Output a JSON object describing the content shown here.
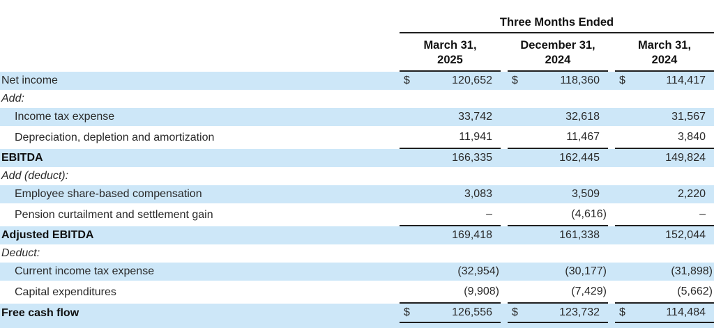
{
  "header": {
    "group_title": "Three Months Ended",
    "columns": [
      {
        "line1": "March 31,",
        "line2": "2025"
      },
      {
        "line1": "December 31,",
        "line2": "2024"
      },
      {
        "line1": "March 31,",
        "line2": "2024"
      }
    ]
  },
  "table": {
    "currency_symbol": "$",
    "rows": [
      {
        "label": "Net income",
        "values": [
          "120,652",
          "118,360",
          "114,417"
        ]
      },
      {
        "label": "Add:",
        "values": [
          "",
          "",
          ""
        ]
      },
      {
        "label": "Income tax expense",
        "values": [
          "33,742",
          "32,618",
          "31,567"
        ]
      },
      {
        "label": "Depreciation, depletion and amortization",
        "values": [
          "11,941",
          "11,467",
          "3,840"
        ]
      },
      {
        "label": "EBITDA",
        "values": [
          "166,335",
          "162,445",
          "149,824"
        ]
      },
      {
        "label": "Add (deduct):",
        "values": [
          "",
          "",
          ""
        ]
      },
      {
        "label": "Employee share-based compensation",
        "values": [
          "3,083",
          "3,509",
          "2,220"
        ]
      },
      {
        "label": "Pension curtailment and settlement gain",
        "values": [
          "–",
          "(4,616)",
          "–"
        ]
      },
      {
        "label": "Adjusted EBITDA",
        "values": [
          "169,418",
          "161,338",
          "152,044"
        ]
      },
      {
        "label": "Deduct:",
        "values": [
          "",
          "",
          ""
        ]
      },
      {
        "label": "Current income tax expense",
        "values": [
          "(32,954)",
          "(30,177)",
          "(31,898)"
        ]
      },
      {
        "label": "Capital expenditures",
        "values": [
          "(9,908)",
          "(7,429)",
          "(5,662)"
        ]
      },
      {
        "label": "Free cash flow",
        "values": [
          "126,556",
          "123,732",
          "114,484"
        ]
      }
    ]
  },
  "colors": {
    "stripe": "#cde7f8",
    "rule": "#1f1f1f",
    "text": "#2a2a2a"
  }
}
